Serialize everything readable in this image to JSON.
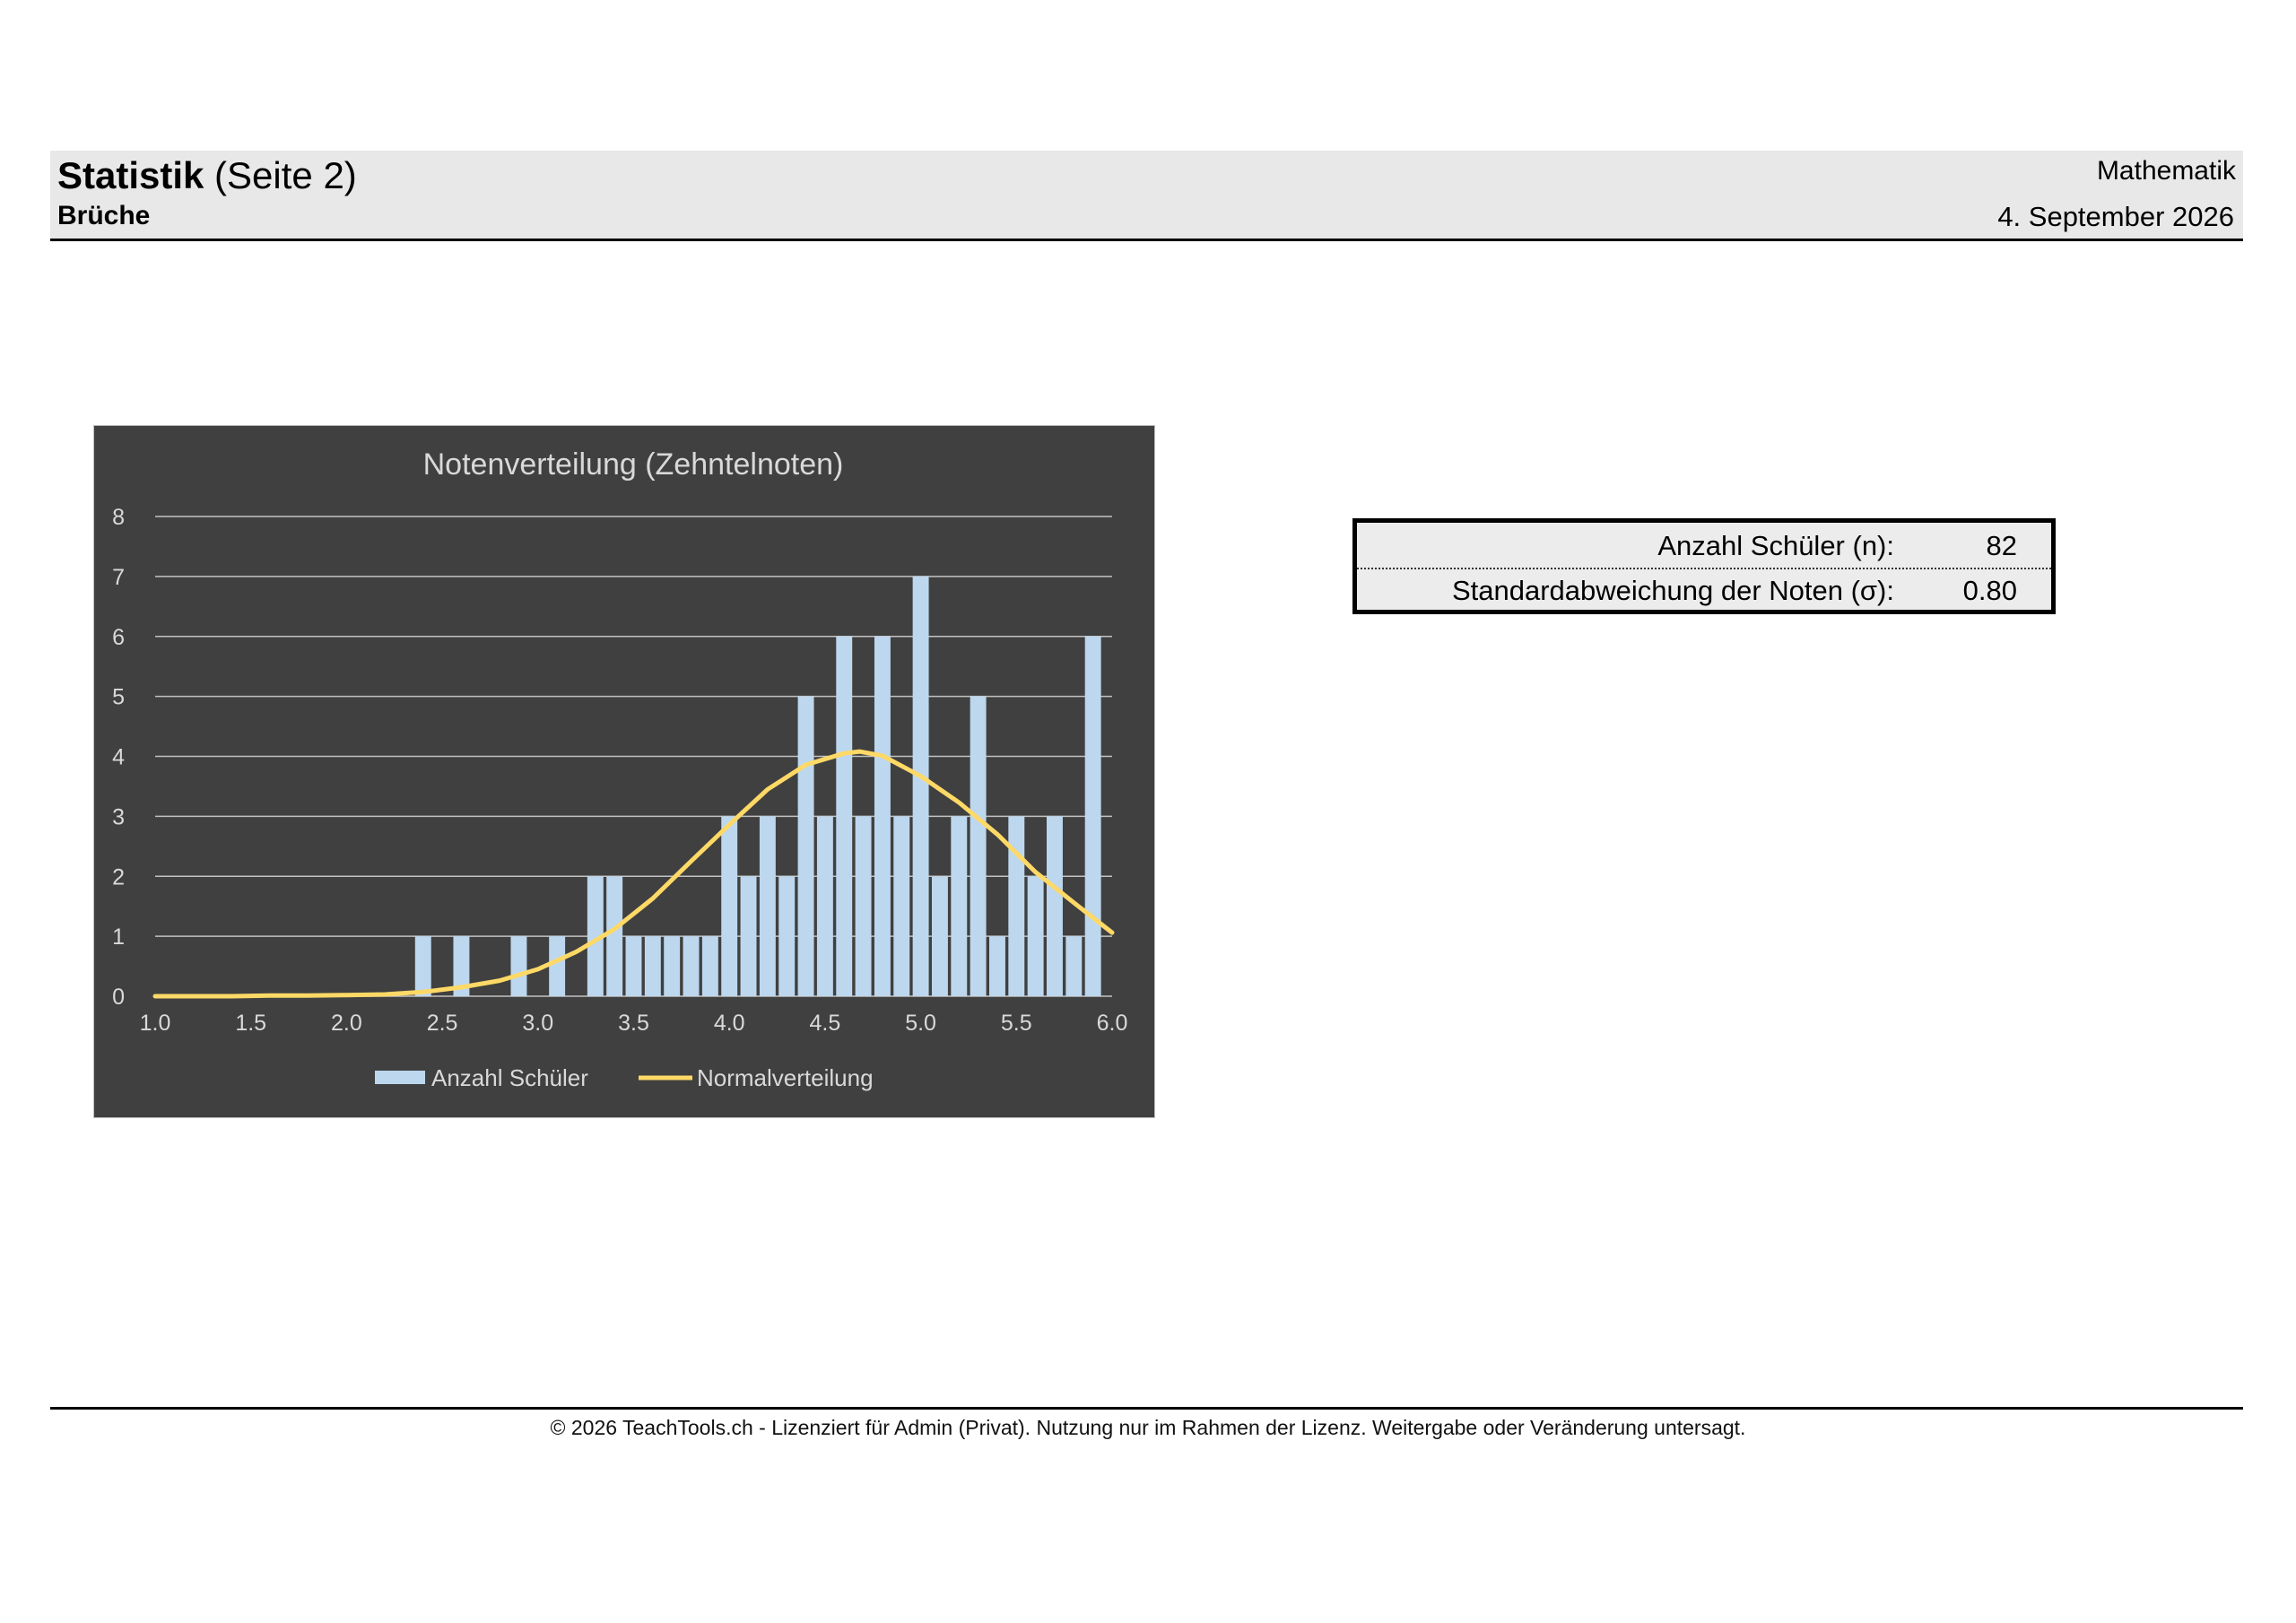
{
  "header": {
    "title_bold": "Statistik",
    "title_rest": " (Seite 2)",
    "subtitle": "Brüche",
    "subject": "Mathematik",
    "date": "4. September 2026"
  },
  "stats": {
    "rows": [
      {
        "label": "Anzahl Schüler (n):",
        "value": "82"
      },
      {
        "label": "Standardabweichung der Noten (σ):",
        "value": "0.80"
      }
    ]
  },
  "footer": {
    "text": "© 2026 TeachTools.ch - Lizenziert für Admin (Privat). Nutzung nur im Rahmen der Lizenz. Weitergabe oder Veränderung untersagt."
  },
  "chart_data": {
    "type": "bar",
    "title": "Notenverteilung (Zehntelnoten)",
    "xlabel": "",
    "ylabel": "",
    "xlim": [
      1.0,
      6.0
    ],
    "ylim": [
      0,
      8
    ],
    "x_ticks": [
      "1.0",
      "1.5",
      "2.0",
      "2.5",
      "3.0",
      "3.5",
      "4.0",
      "4.5",
      "5.0",
      "5.5",
      "6.0"
    ],
    "y_ticks": [
      "0",
      "1",
      "2",
      "3",
      "4",
      "5",
      "6",
      "7",
      "8"
    ],
    "grid": true,
    "legend_position": "bottom",
    "colors": {
      "background": "#404040",
      "bars": "#bdd7ee",
      "line": "#ffd966",
      "text": "#d9d9d9",
      "grid": "#d9d9d9"
    },
    "series": [
      {
        "name": "Anzahl Schüler",
        "kind": "bar",
        "x": [
          2.4,
          2.6,
          2.9,
          3.1,
          3.3,
          3.4,
          3.5,
          3.6,
          3.7,
          3.8,
          3.9,
          4.0,
          4.1,
          4.2,
          4.3,
          4.4,
          4.5,
          4.6,
          4.7,
          4.8,
          4.9,
          5.0,
          5.1,
          5.2,
          5.3,
          5.4,
          5.5,
          5.6,
          5.7,
          5.8,
          5.9
        ],
        "values": [
          1,
          1,
          1,
          1,
          2,
          2,
          1,
          1,
          1,
          1,
          1,
          3,
          2,
          3,
          2,
          5,
          3,
          6,
          3,
          6,
          3,
          7,
          2,
          3,
          5,
          1,
          3,
          2,
          3,
          1,
          6
        ]
      },
      {
        "name": "Normalverteilung",
        "kind": "line",
        "mean": 4.68,
        "sd": 0.8,
        "x": [
          1.0,
          1.2,
          1.4,
          1.6,
          1.8,
          2.0,
          2.2,
          2.4,
          2.6,
          2.8,
          3.0,
          3.2,
          3.4,
          3.6,
          3.8,
          4.0,
          4.2,
          4.4,
          4.6,
          4.68,
          4.8,
          5.0,
          5.2,
          5.4,
          5.6,
          5.8,
          6.0
        ],
        "values": [
          0.0,
          0.0,
          0.0,
          0.01,
          0.01,
          0.02,
          0.03,
          0.07,
          0.15,
          0.26,
          0.45,
          0.74,
          1.12,
          1.63,
          2.25,
          2.86,
          3.45,
          3.86,
          4.05,
          4.08,
          4.01,
          3.67,
          3.23,
          2.7,
          2.07,
          1.56,
          1.06
        ]
      }
    ]
  }
}
